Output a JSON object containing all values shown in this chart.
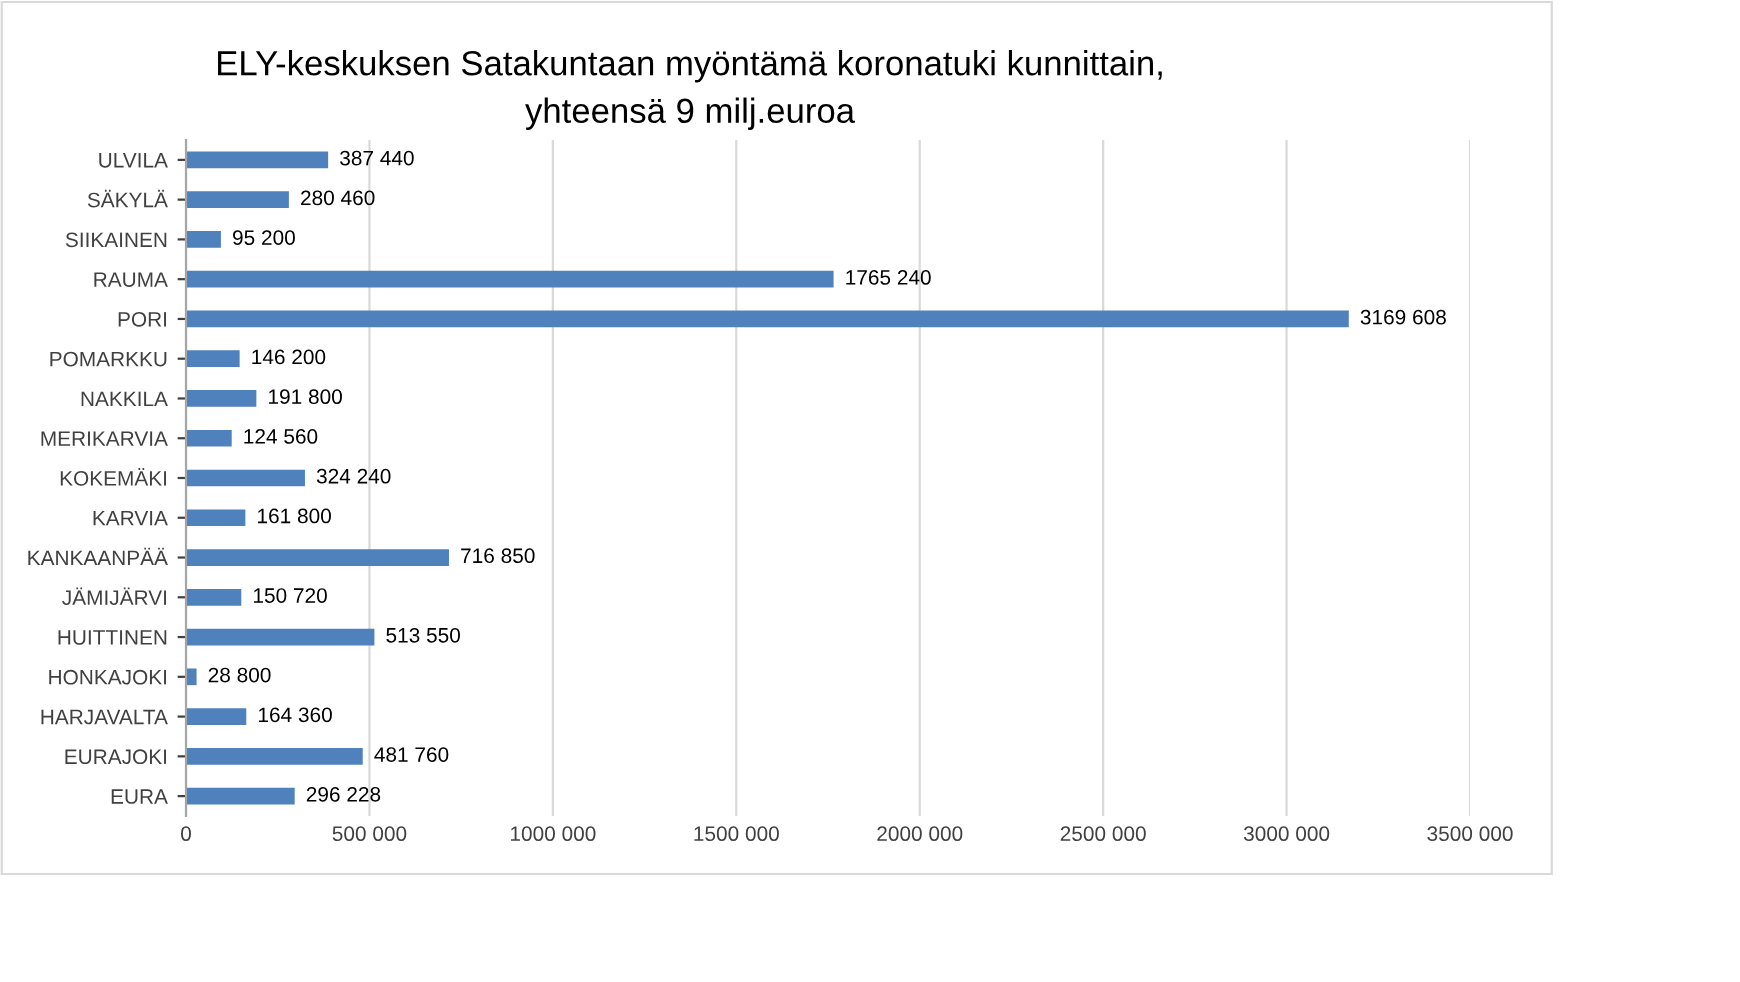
{
  "chart_data": {
    "type": "bar",
    "orientation": "horizontal",
    "title": "ELY-keskuksen Satakuntaan myöntämä koronatuki kunnittain,\nyhteensä 9 milj.euroa",
    "categories": [
      "ULVILA",
      "SÄKYLÄ",
      "SIIKAINEN",
      "RAUMA",
      "PORI",
      "POMARKKU",
      "NAKKILA",
      "MERIKARVIA",
      "KOKEMÄKI",
      "KARVIA",
      "KANKAANPÄÄ",
      "JÄMIJÄRVI",
      "HUITTINEN",
      "HONKAJOKI",
      "HARJAVALTA",
      "EURAJOKI",
      "EURA"
    ],
    "values": [
      387440,
      280460,
      95200,
      1765240,
      3169608,
      146200,
      191800,
      124560,
      324240,
      161800,
      716850,
      150720,
      513550,
      28800,
      164360,
      481760,
      296228
    ],
    "value_labels": [
      "387 440",
      "280 460",
      "95 200",
      "1765 240",
      "3169 608",
      "146 200",
      "191 800",
      "124 560",
      "324 240",
      "161 800",
      "716 850",
      "150 720",
      "513 550",
      "28 800",
      "164 360",
      "481 760",
      "296 228"
    ],
    "color": "#4f81bd",
    "xlim": [
      0,
      3500000
    ],
    "xticks": [
      0,
      {
        "value": 500000,
        "label": "500 000"
      },
      {
        "value": 1000000,
        "label": "1000 000"
      },
      {
        "value": 1500000,
        "label": "1500 000"
      },
      {
        "value": 2000000,
        "label": "2000 000"
      },
      {
        "value": 2500000,
        "label": "2500 000"
      },
      {
        "value": 3000000,
        "label": "3000 000"
      },
      {
        "value": 3500000,
        "label": "3500 000"
      }
    ],
    "grid": "x",
    "legend": false
  }
}
